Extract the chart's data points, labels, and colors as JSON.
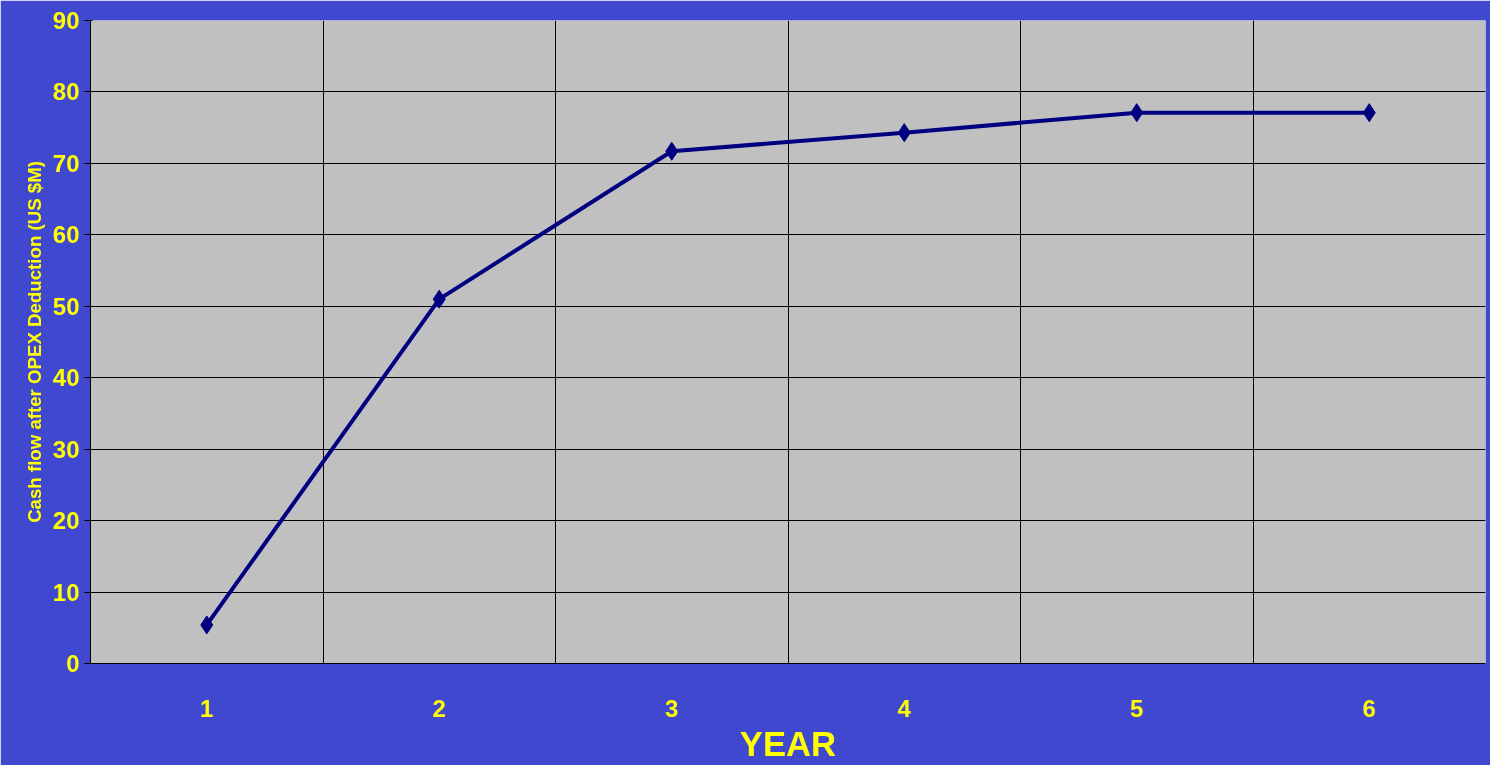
{
  "chart_data": {
    "type": "line",
    "xlabel": "YEAR",
    "ylabel": "Cash flow after OPEX Deduction (US $M)",
    "categories": [
      "1",
      "2",
      "3",
      "4",
      "5",
      "6"
    ],
    "series": [
      {
        "color": "#000080",
        "values": [
          5.4,
          51,
          71.7,
          74.3,
          77.1,
          77.1
        ]
      }
    ],
    "ylim": [
      0,
      90
    ],
    "yticks": [
      0,
      10,
      20,
      30,
      40,
      50,
      60,
      70,
      80,
      90
    ],
    "grid": true,
    "marker": "diamond",
    "line_style": "solid"
  }
}
